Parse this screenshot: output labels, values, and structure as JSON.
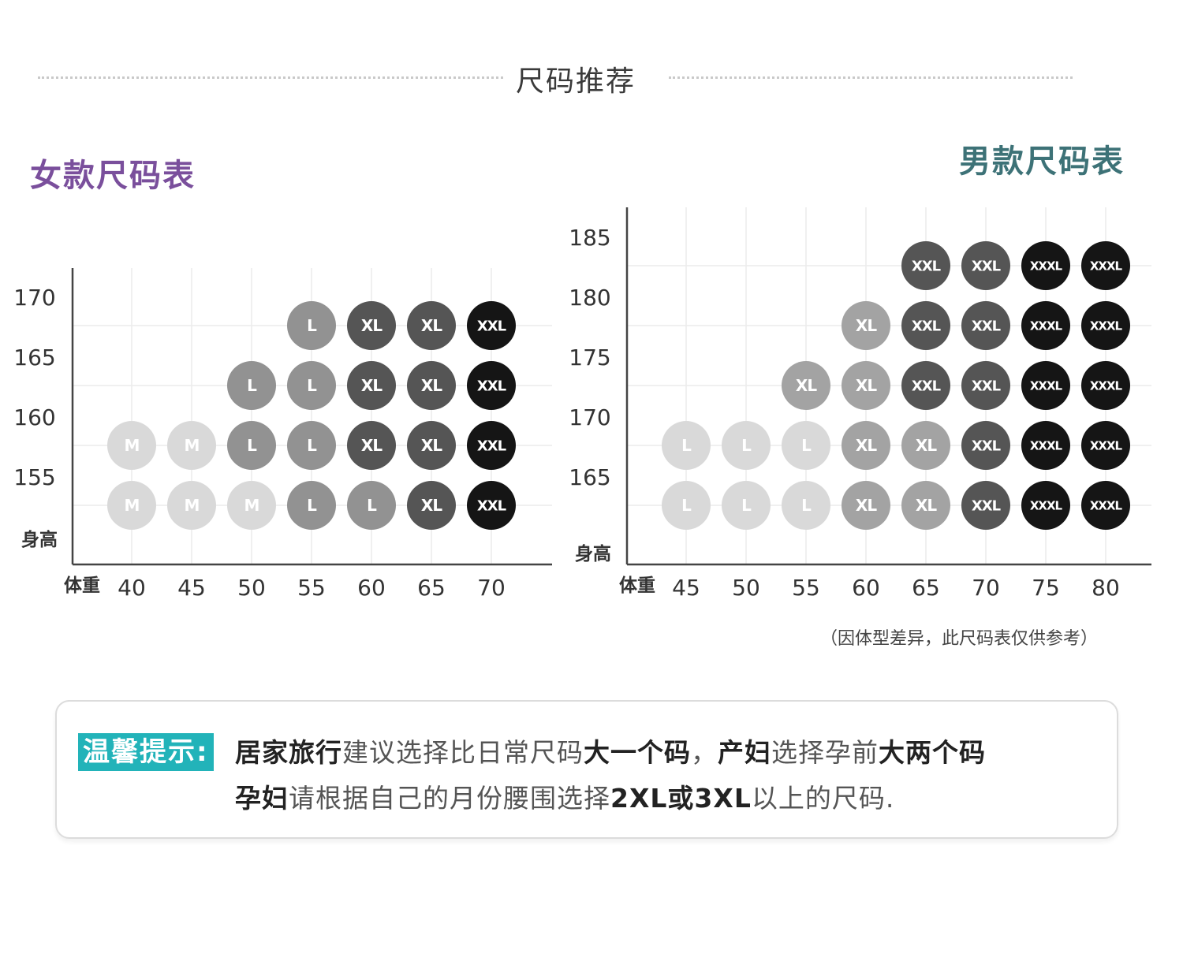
{
  "title": "尺码推荐",
  "colors": {
    "women_title": "#7a4f9c",
    "men_title": "#3d7277",
    "tip_label_bg": "#22b3b9",
    "size_M": "#d9d9d9",
    "size_L_light": "#d9d9d9",
    "size_L": "#929292",
    "size_XL_light": "#a3a3a3",
    "size_XL": "#555555",
    "size_XXL": "#555555",
    "size_XXL_dark": "#151515",
    "size_XXXL": "#151515"
  },
  "chart_data": [
    {
      "type": "table",
      "title": "女款尺码表",
      "xlabel": "体重",
      "ylabel": "身高",
      "x": [
        40,
        45,
        50,
        55,
        60,
        65,
        70
      ],
      "y": [
        155,
        160,
        165,
        170
      ],
      "cells": [
        {
          "weight": 55,
          "height": 170,
          "size": "L",
          "tone": "size_L"
        },
        {
          "weight": 60,
          "height": 170,
          "size": "XL",
          "tone": "size_XL"
        },
        {
          "weight": 65,
          "height": 170,
          "size": "XL",
          "tone": "size_XL"
        },
        {
          "weight": 70,
          "height": 170,
          "size": "XXL",
          "tone": "size_XXL_dark"
        },
        {
          "weight": 50,
          "height": 165,
          "size": "L",
          "tone": "size_L"
        },
        {
          "weight": 55,
          "height": 165,
          "size": "L",
          "tone": "size_L"
        },
        {
          "weight": 60,
          "height": 165,
          "size": "XL",
          "tone": "size_XL"
        },
        {
          "weight": 65,
          "height": 165,
          "size": "XL",
          "tone": "size_XL"
        },
        {
          "weight": 70,
          "height": 165,
          "size": "XXL",
          "tone": "size_XXL_dark"
        },
        {
          "weight": 40,
          "height": 160,
          "size": "M",
          "tone": "size_M"
        },
        {
          "weight": 45,
          "height": 160,
          "size": "M",
          "tone": "size_M"
        },
        {
          "weight": 50,
          "height": 160,
          "size": "L",
          "tone": "size_L"
        },
        {
          "weight": 55,
          "height": 160,
          "size": "L",
          "tone": "size_L"
        },
        {
          "weight": 60,
          "height": 160,
          "size": "XL",
          "tone": "size_XL"
        },
        {
          "weight": 65,
          "height": 160,
          "size": "XL",
          "tone": "size_XL"
        },
        {
          "weight": 70,
          "height": 160,
          "size": "XXL",
          "tone": "size_XXL_dark"
        },
        {
          "weight": 40,
          "height": 155,
          "size": "M",
          "tone": "size_M"
        },
        {
          "weight": 45,
          "height": 155,
          "size": "M",
          "tone": "size_M"
        },
        {
          "weight": 50,
          "height": 155,
          "size": "M",
          "tone": "size_M"
        },
        {
          "weight": 55,
          "height": 155,
          "size": "L",
          "tone": "size_L"
        },
        {
          "weight": 60,
          "height": 155,
          "size": "L",
          "tone": "size_L"
        },
        {
          "weight": 65,
          "height": 155,
          "size": "XL",
          "tone": "size_XL"
        },
        {
          "weight": 70,
          "height": 155,
          "size": "XXL",
          "tone": "size_XXL_dark"
        }
      ]
    },
    {
      "type": "table",
      "title": "男款尺码表",
      "xlabel": "体重",
      "ylabel": "身高",
      "x": [
        45,
        50,
        55,
        60,
        65,
        70,
        75,
        80
      ],
      "y": [
        165,
        170,
        175,
        180,
        185
      ],
      "cells": [
        {
          "weight": 65,
          "height": 185,
          "size": "XXL",
          "tone": "size_XXL"
        },
        {
          "weight": 70,
          "height": 185,
          "size": "XXL",
          "tone": "size_XXL"
        },
        {
          "weight": 75,
          "height": 185,
          "size": "XXXL",
          "tone": "size_XXXL"
        },
        {
          "weight": 80,
          "height": 185,
          "size": "XXXL",
          "tone": "size_XXXL"
        },
        {
          "weight": 60,
          "height": 180,
          "size": "XL",
          "tone": "size_XL_light"
        },
        {
          "weight": 65,
          "height": 180,
          "size": "XXL",
          "tone": "size_XXL"
        },
        {
          "weight": 70,
          "height": 180,
          "size": "XXL",
          "tone": "size_XXL"
        },
        {
          "weight": 75,
          "height": 180,
          "size": "XXXL",
          "tone": "size_XXXL"
        },
        {
          "weight": 80,
          "height": 180,
          "size": "XXXL",
          "tone": "size_XXXL"
        },
        {
          "weight": 55,
          "height": 175,
          "size": "XL",
          "tone": "size_XL_light"
        },
        {
          "weight": 60,
          "height": 175,
          "size": "XL",
          "tone": "size_XL_light"
        },
        {
          "weight": 65,
          "height": 175,
          "size": "XXL",
          "tone": "size_XXL"
        },
        {
          "weight": 70,
          "height": 175,
          "size": "XXL",
          "tone": "size_XXL"
        },
        {
          "weight": 75,
          "height": 175,
          "size": "XXXL",
          "tone": "size_XXXL"
        },
        {
          "weight": 80,
          "height": 175,
          "size": "XXXL",
          "tone": "size_XXXL"
        },
        {
          "weight": 45,
          "height": 170,
          "size": "L",
          "tone": "size_L_light"
        },
        {
          "weight": 50,
          "height": 170,
          "size": "L",
          "tone": "size_L_light"
        },
        {
          "weight": 55,
          "height": 170,
          "size": "L",
          "tone": "size_L_light"
        },
        {
          "weight": 60,
          "height": 170,
          "size": "XL",
          "tone": "size_XL_light"
        },
        {
          "weight": 65,
          "height": 170,
          "size": "XL",
          "tone": "size_XL_light"
        },
        {
          "weight": 70,
          "height": 170,
          "size": "XXL",
          "tone": "size_XXL"
        },
        {
          "weight": 75,
          "height": 170,
          "size": "XXXL",
          "tone": "size_XXXL"
        },
        {
          "weight": 80,
          "height": 170,
          "size": "XXXL",
          "tone": "size_XXXL"
        },
        {
          "weight": 45,
          "height": 165,
          "size": "L",
          "tone": "size_L_light"
        },
        {
          "weight": 50,
          "height": 165,
          "size": "L",
          "tone": "size_L_light"
        },
        {
          "weight": 55,
          "height": 165,
          "size": "L",
          "tone": "size_L_light"
        },
        {
          "weight": 60,
          "height": 165,
          "size": "XL",
          "tone": "size_XL_light"
        },
        {
          "weight": 65,
          "height": 165,
          "size": "XL",
          "tone": "size_XL_light"
        },
        {
          "weight": 70,
          "height": 165,
          "size": "XXL",
          "tone": "size_XXL"
        },
        {
          "weight": 75,
          "height": 165,
          "size": "XXXL",
          "tone": "size_XXXL"
        },
        {
          "weight": 80,
          "height": 165,
          "size": "XXXL",
          "tone": "size_XXXL"
        }
      ]
    }
  ],
  "note": "（因体型差异，此尺码表仅供参考）",
  "tip": {
    "label": "温馨提示:",
    "line1": [
      {
        "text": "居家旅行",
        "bold": true
      },
      {
        "text": "建议选择比日常尺码",
        "bold": false
      },
      {
        "text": "大一个码",
        "bold": true
      },
      {
        "text": "，",
        "bold": false
      },
      {
        "text": "产妇",
        "bold": true
      },
      {
        "text": "选择孕前",
        "bold": false
      },
      {
        "text": "大两个码",
        "bold": true
      }
    ],
    "line2": [
      {
        "text": "孕妇",
        "bold": true
      },
      {
        "text": "请根据自己的月份腰围选择",
        "bold": false
      },
      {
        "text": "2XL或3XL",
        "bold": true
      },
      {
        "text": "以上的尺码.",
        "bold": false
      }
    ]
  }
}
